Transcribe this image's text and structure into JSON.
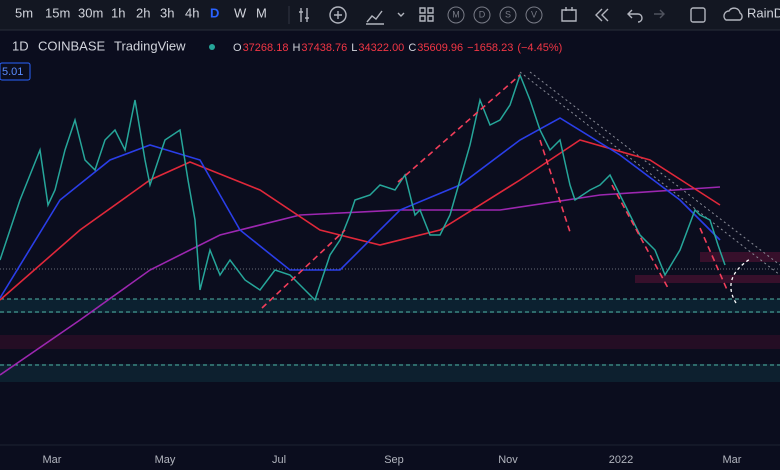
{
  "toolbar": {
    "intervals": [
      "5m",
      "15m",
      "30m",
      "1h",
      "2h",
      "3h",
      "4h",
      "D",
      "W",
      "M"
    ],
    "active_interval": "D",
    "circle_buttons": [
      "M",
      "D",
      "S",
      "V"
    ],
    "account": "RainD"
  },
  "legend": {
    "interval": "1D",
    "exchange": "COINBASE",
    "publisher": "TradingView",
    "ohlc": [
      {
        "label": "O",
        "value": "37268.18"
      },
      {
        "label": "H",
        "value": "37438.76"
      },
      {
        "label": "L",
        "value": "34322.00"
      },
      {
        "label": "C",
        "value": "35609.96"
      }
    ],
    "change": "−1658.23",
    "change_pct": "(−4.45%)"
  },
  "badge": "5.01",
  "time_axis": [
    "Mar",
    "May",
    "Jul",
    "Sep",
    "Nov",
    "2022",
    "Mar"
  ]
}
